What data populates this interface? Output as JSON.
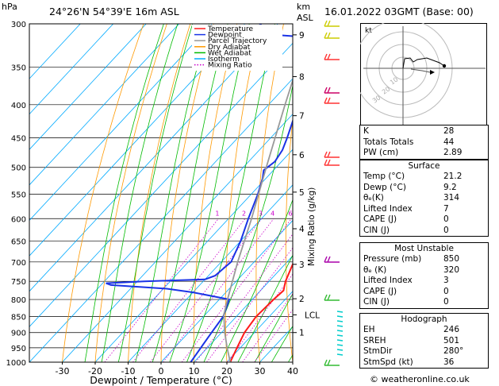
{
  "header": {
    "pressure_unit": "hPa",
    "location": "24°26'N  54°39'E  16m  ASL",
    "height_unit_line1": "km",
    "height_unit_line2": "ASL",
    "datetime": "16.01.2022  03GMT  (Base: 00)",
    "credit": "© weatheronline.co.uk"
  },
  "legend": [
    {
      "label": "Temperature",
      "color": "#ff1a1a",
      "style": "solid"
    },
    {
      "label": "Dewpoint",
      "color": "#1a33e6",
      "style": "solid"
    },
    {
      "label": "Parcel Trajectory",
      "color": "#999999",
      "style": "solid"
    },
    {
      "label": "Dry Adiabat",
      "color": "#ff9900",
      "style": "solid"
    },
    {
      "label": "Wet Adiabat",
      "color": "#00bb00",
      "style": "solid"
    },
    {
      "label": "Isotherm",
      "color": "#00aaff",
      "style": "solid"
    },
    {
      "label": "Mixing Ratio",
      "color": "#cc00cc",
      "style": "dotted"
    }
  ],
  "chart_data": {
    "type": "line",
    "title": "",
    "xlabel": "Dewpoint / Temperature (°C)",
    "ylabel": "",
    "x_ticks": [
      -30,
      -20,
      -10,
      0,
      10,
      20,
      30,
      40
    ],
    "pressure_ticks": [
      300,
      350,
      400,
      450,
      500,
      550,
      600,
      650,
      700,
      750,
      800,
      850,
      900,
      950,
      1000
    ],
    "height_ticks": [
      {
        "km": "1",
        "p": 900
      },
      {
        "km": "2",
        "p": 798
      },
      {
        "km": "3",
        "p": 706
      },
      {
        "km": "4",
        "p": 622
      },
      {
        "km": "5",
        "p": 546
      },
      {
        "km": "6",
        "p": 478
      },
      {
        "km": "7",
        "p": 416
      },
      {
        "km": "8",
        "p": 362
      },
      {
        "km": "9",
        "p": 312
      }
    ],
    "lcl": {
      "label": "LCL",
      "p": 845
    },
    "mixing_ratio_label": "Mixing Ratio (g/kg)",
    "mixing_ratios": [
      1,
      2,
      3,
      4,
      6,
      8,
      10,
      15,
      20,
      25
    ],
    "skew": 45,
    "series": [
      {
        "name": "Temperature",
        "color": "#ff1a1a",
        "points": [
          [
            1000,
            21
          ],
          [
            950,
            19
          ],
          [
            900,
            17
          ],
          [
            850,
            16
          ],
          [
            800,
            16.5
          ],
          [
            775,
            17
          ],
          [
            750,
            15
          ],
          [
            700,
            12
          ],
          [
            650,
            9
          ],
          [
            600,
            5
          ],
          [
            550,
            1
          ],
          [
            515,
            -3
          ],
          [
            500,
            -6
          ],
          [
            475,
            -8
          ],
          [
            450,
            -11
          ],
          [
            400,
            -18
          ],
          [
            370,
            -22
          ],
          [
            340,
            -27
          ],
          [
            320,
            -32
          ],
          [
            315,
            -33
          ],
          [
            305,
            -32
          ],
          [
            300,
            -33
          ]
        ]
      },
      {
        "name": "Dewpoint",
        "color": "#1a33e6",
        "points": [
          [
            1000,
            9
          ],
          [
            950,
            8
          ],
          [
            900,
            7
          ],
          [
            850,
            6
          ],
          [
            800,
            3
          ],
          [
            780,
            -10
          ],
          [
            770,
            -19
          ],
          [
            760,
            -37
          ],
          [
            755,
            -39
          ],
          [
            750,
            -28
          ],
          [
            745,
            -10
          ],
          [
            735,
            -8
          ],
          [
            700,
            -7
          ],
          [
            650,
            -10
          ],
          [
            600,
            -14
          ],
          [
            550,
            -18
          ],
          [
            520,
            -21
          ],
          [
            505,
            -23
          ],
          [
            490,
            -22
          ],
          [
            470,
            -23
          ],
          [
            450,
            -25
          ],
          [
            400,
            -31
          ],
          [
            380,
            -32
          ],
          [
            360,
            -35
          ],
          [
            335,
            -40
          ],
          [
            318,
            -43
          ],
          [
            314,
            -50
          ],
          [
            310,
            -66
          ],
          [
            300,
            -65
          ]
        ]
      },
      {
        "name": "Parcel Trajectory",
        "color": "#999999",
        "points": [
          [
            1000,
            21
          ],
          [
            950,
            16
          ],
          [
            900,
            11
          ],
          [
            845,
            5.7
          ],
          [
            800,
            2.5
          ],
          [
            700,
            -5
          ],
          [
            600,
            -13
          ],
          [
            500,
            -23
          ],
          [
            400,
            -35
          ],
          [
            300,
            -50
          ]
        ]
      }
    ]
  },
  "hodograph": {
    "unit_label": "kt",
    "rings": [
      "10",
      "20",
      "30"
    ]
  },
  "indices": [
    {
      "label": "K",
      "value": "28"
    },
    {
      "label": "Totals Totals",
      "value": "44"
    },
    {
      "label": "PW (cm)",
      "value": "2.89"
    }
  ],
  "surface": {
    "title": "Surface",
    "rows": [
      {
        "label": "Temp (°C)",
        "value": "21.2"
      },
      {
        "label": "Dewp (°C)",
        "value": "9.2"
      },
      {
        "label": "θₑ(K)",
        "value": "314"
      },
      {
        "label": "Lifted Index",
        "value": "7"
      },
      {
        "label": "CAPE (J)",
        "value": "0"
      },
      {
        "label": "CIN (J)",
        "value": "0"
      }
    ]
  },
  "most_unstable": {
    "title": "Most Unstable",
    "rows": [
      {
        "label": "Pressure (mb)",
        "value": "850"
      },
      {
        "label": "θₑ (K)",
        "value": "320"
      },
      {
        "label": "Lifted Index",
        "value": "3"
      },
      {
        "label": "CAPE (J)",
        "value": "0"
      },
      {
        "label": "CIN (J)",
        "value": "0"
      }
    ]
  },
  "hodograph_stats": {
    "title": "Hodograph",
    "rows": [
      {
        "label": "EH",
        "value": "246"
      },
      {
        "label": "SREH",
        "value": "501"
      },
      {
        "label": "StmDir",
        "value": "280°"
      },
      {
        "label": "StmSpd (kt)",
        "value": "36"
      }
    ]
  }
}
